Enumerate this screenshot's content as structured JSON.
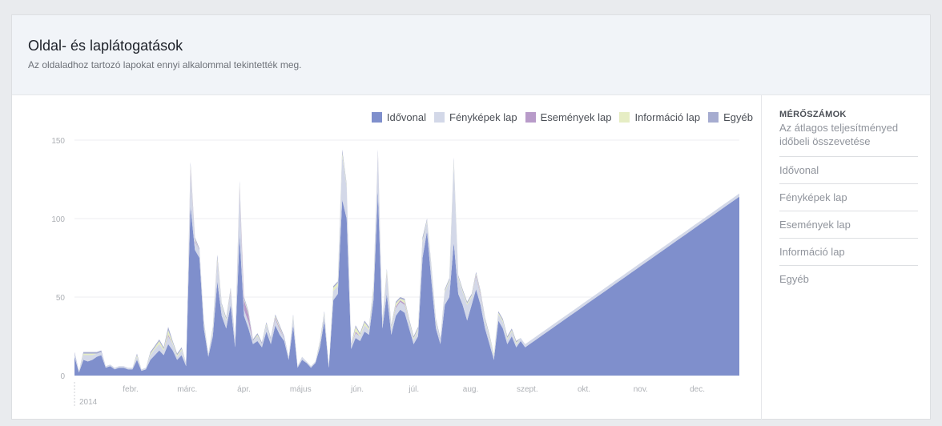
{
  "header": {
    "title": "Oldal- és laplátogatások",
    "subtitle": "Az oldaladhoz tartozó lapokat ennyi alkalommal tekintették meg."
  },
  "sidebar": {
    "title": "MÉRŐSZÁMOK",
    "description": "Az átlagos teljesítményed időbeli összevetése",
    "items": [
      {
        "label": "Idővonal"
      },
      {
        "label": "Fényképek lap"
      },
      {
        "label": "Események lap"
      },
      {
        "label": "Információ lap"
      },
      {
        "label": "Egyéb"
      }
    ]
  },
  "chart_data": {
    "type": "area",
    "stacked": true,
    "ylim": [
      0,
      150
    ],
    "yticks": [
      0,
      50,
      100,
      150
    ],
    "grid": true,
    "legend_position": "top-right",
    "year_label": "2014",
    "month_labels": [
      "febr.",
      "márc.",
      "ápr.",
      "május",
      "jún.",
      "júl.",
      "aug.",
      "szept.",
      "okt.",
      "nov.",
      "dec."
    ],
    "x": [
      1,
      2,
      3,
      4,
      5,
      6,
      7,
      8,
      9,
      10,
      11,
      12,
      13,
      14,
      15,
      16,
      17,
      18,
      19,
      20,
      21,
      22,
      23,
      24,
      25,
      26,
      27,
      28,
      29,
      30,
      31,
      32,
      33,
      34,
      35,
      36,
      37,
      38,
      39,
      40,
      41,
      42,
      43,
      44,
      45,
      46,
      47,
      48,
      49,
      50,
      51,
      52,
      53,
      54,
      55,
      56,
      57,
      58,
      59,
      60,
      61,
      62,
      63,
      64,
      65,
      66,
      67,
      68,
      69,
      70,
      71,
      72,
      73,
      74,
      75,
      76,
      77,
      78,
      79,
      80,
      81,
      82,
      83,
      84,
      85,
      86,
      87,
      88,
      89,
      90,
      91,
      92,
      93,
      94,
      95,
      96,
      97,
      98,
      99,
      100,
      101,
      102,
      103,
      104,
      105,
      106,
      107,
      108,
      109,
      110,
      111,
      112,
      113,
      114,
      115,
      116,
      117,
      118,
      119,
      120,
      121,
      122,
      123,
      124,
      125,
      126,
      127,
      128,
      129,
      130,
      131,
      132,
      133,
      134,
      135,
      136,
      137,
      138,
      139,
      140,
      141,
      142,
      143,
      144,
      145,
      146,
      147,
      148,
      149,
      150
    ],
    "series": [
      {
        "name": "Idővonal",
        "color": "#7f8fcc",
        "values": [
          12,
          2,
          10,
          9,
          10,
          12,
          13,
          5,
          6,
          4,
          5,
          5,
          4,
          4,
          10,
          3,
          4,
          10,
          13,
          16,
          13,
          20,
          16,
          10,
          13,
          6,
          108,
          80,
          75,
          30,
          12,
          25,
          60,
          38,
          30,
          45,
          18,
          90,
          38,
          30,
          20,
          22,
          18,
          28,
          20,
          32,
          26,
          22,
          10,
          32,
          5,
          10,
          8,
          5,
          8,
          18,
          35,
          5,
          48,
          52,
          112,
          100,
          17,
          24,
          22,
          28,
          26,
          48,
          118,
          30,
          52,
          26,
          38,
          42,
          40,
          30,
          20,
          25,
          75,
          92,
          60,
          30,
          20,
          45,
          50,
          85,
          52,
          45,
          35,
          45,
          55,
          45,
          30,
          20,
          10,
          35,
          30,
          20,
          25,
          18,
          22,
          18,
          20,
          22,
          24,
          26,
          28,
          30,
          32,
          34,
          36,
          38,
          40,
          42,
          44,
          46,
          48,
          50,
          52,
          54,
          56,
          58,
          60,
          62,
          64,
          66,
          68,
          70,
          72,
          74,
          76,
          78,
          80,
          82,
          84,
          86,
          88,
          90,
          92,
          94,
          96,
          98,
          100,
          102,
          104,
          106,
          108,
          110,
          112,
          114
        ]
      },
      {
        "name": "Fényképek lap",
        "color": "#d3d8e8",
        "values": [
          2,
          1,
          3,
          4,
          3,
          2,
          2,
          1,
          1,
          1,
          1,
          1,
          1,
          1,
          2,
          1,
          1,
          3,
          4,
          4,
          3,
          5,
          4,
          2,
          3,
          2,
          22,
          5,
          5,
          3,
          2,
          4,
          12,
          6,
          5,
          8,
          3,
          28,
          4,
          4,
          2,
          3,
          2,
          4,
          3,
          4,
          3,
          2,
          2,
          5,
          1,
          2,
          1,
          1,
          1,
          2,
          4,
          1,
          6,
          5,
          28,
          20,
          2,
          3,
          3,
          4,
          3,
          6,
          22,
          4,
          12,
          4,
          5,
          5,
          5,
          4,
          3,
          4,
          10,
          6,
          8,
          4,
          3,
          8,
          10,
          50,
          10,
          8,
          10,
          5,
          8,
          6,
          5,
          4,
          3,
          4,
          4,
          3,
          3,
          2,
          2,
          2,
          2,
          2,
          2,
          2,
          2,
          2,
          2,
          2,
          2,
          2,
          2,
          2,
          2,
          2,
          2,
          2,
          2,
          2,
          2,
          2,
          2,
          2,
          2,
          2,
          2,
          2,
          2,
          2,
          2,
          2,
          2,
          2,
          2,
          2,
          2,
          2,
          2,
          2,
          2,
          2,
          2,
          2,
          2,
          2,
          2,
          2,
          2,
          2
        ]
      },
      {
        "name": "Események lap",
        "color": "#b89bc9",
        "values": [
          0,
          0,
          0,
          0,
          0,
          0,
          0,
          0,
          0,
          0,
          0,
          0,
          0,
          0,
          0,
          0,
          0,
          0,
          0,
          0,
          0,
          1,
          0,
          0,
          0,
          0,
          2,
          1,
          0,
          0,
          0,
          0,
          1,
          0,
          0,
          1,
          0,
          2,
          6,
          5,
          0,
          0,
          0,
          0,
          0,
          1,
          1,
          0,
          0,
          0,
          0,
          0,
          0,
          0,
          0,
          0,
          0,
          0,
          0,
          0,
          0,
          0,
          0,
          1,
          0,
          0,
          0,
          0,
          1,
          0,
          1,
          0,
          1,
          1,
          1,
          0,
          0,
          0,
          0,
          0,
          0,
          0,
          0,
          0,
          0,
          0,
          0,
          0,
          0,
          0,
          1,
          1,
          0,
          0,
          0,
          0,
          0,
          0,
          0,
          0,
          0,
          0,
          0,
          0,
          0,
          0,
          0,
          0,
          0,
          0,
          0,
          0,
          0,
          0,
          0,
          0,
          0,
          0,
          0,
          0,
          0,
          0,
          0,
          0,
          0,
          0,
          0,
          0,
          0,
          0,
          0,
          0,
          0,
          0,
          0,
          0,
          0,
          0,
          0,
          0,
          0,
          0,
          0,
          0,
          0,
          0,
          0,
          0,
          0,
          0
        ]
      },
      {
        "name": "Információ lap",
        "color": "#e6edc4",
        "values": [
          0,
          0,
          1,
          1,
          1,
          0,
          0,
          0,
          0,
          0,
          0,
          0,
          0,
          0,
          1,
          0,
          0,
          1,
          1,
          2,
          1,
          3,
          1,
          1,
          1,
          0,
          2,
          1,
          0,
          1,
          0,
          1,
          2,
          1,
          1,
          1,
          0,
          2,
          1,
          1,
          0,
          1,
          0,
          1,
          0,
          1,
          1,
          0,
          0,
          1,
          0,
          0,
          0,
          0,
          0,
          1,
          1,
          0,
          2,
          2,
          2,
          1,
          0,
          3,
          1,
          2,
          1,
          2,
          1,
          1,
          2,
          1,
          2,
          1,
          2,
          1,
          1,
          1,
          1,
          1,
          1,
          1,
          0,
          1,
          1,
          2,
          1,
          1,
          1,
          1,
          1,
          1,
          1,
          1,
          1,
          1,
          1,
          1,
          1,
          1,
          0,
          0,
          0,
          0,
          0,
          0,
          0,
          0,
          0,
          0,
          0,
          0,
          0,
          0,
          0,
          0,
          0,
          0,
          0,
          0,
          0,
          0,
          0,
          0,
          0,
          0,
          0,
          0,
          0,
          0,
          0,
          0,
          0,
          0,
          0,
          0,
          0,
          0,
          0,
          0,
          0,
          0,
          0,
          0,
          0,
          0,
          0,
          0,
          0,
          0
        ]
      },
      {
        "name": "Egyéb",
        "color": "#a6acd0",
        "values": [
          1,
          0,
          1,
          1,
          1,
          1,
          1,
          0,
          0,
          0,
          0,
          0,
          0,
          0,
          1,
          0,
          0,
          1,
          1,
          1,
          1,
          2,
          1,
          1,
          1,
          0,
          2,
          1,
          1,
          1,
          0,
          1,
          2,
          1,
          1,
          1,
          1,
          2,
          1,
          1,
          1,
          1,
          1,
          1,
          1,
          1,
          1,
          1,
          0,
          1,
          0,
          0,
          0,
          0,
          0,
          1,
          1,
          0,
          1,
          1,
          2,
          1,
          1,
          1,
          1,
          1,
          1,
          1,
          2,
          1,
          1,
          1,
          1,
          1,
          1,
          1,
          1,
          1,
          2,
          1,
          1,
          1,
          1,
          1,
          1,
          2,
          1,
          1,
          1,
          1,
          1,
          1,
          1,
          1,
          0,
          1,
          1,
          1,
          1,
          1,
          0,
          0,
          0,
          0,
          0,
          0,
          0,
          0,
          0,
          0,
          0,
          0,
          0,
          0,
          0,
          0,
          0,
          0,
          0,
          0,
          0,
          0,
          0,
          0,
          0,
          0,
          0,
          0,
          0,
          0,
          0,
          0,
          0,
          0,
          0,
          0,
          0,
          0,
          0,
          0,
          0,
          0,
          0,
          0,
          0,
          0,
          0,
          0,
          0,
          0
        ]
      }
    ]
  }
}
